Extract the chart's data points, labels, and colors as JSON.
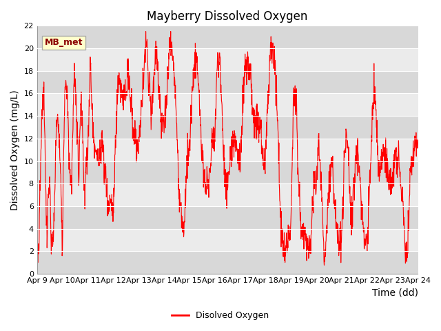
{
  "title": "Mayberry Dissolved Oxygen",
  "ylabel": "Dissolved Oxygen (mg/L)",
  "xlabel": "Time (dd)",
  "ylim": [
    0,
    22
  ],
  "yticks": [
    0,
    2,
    4,
    6,
    8,
    10,
    12,
    14,
    16,
    18,
    20,
    22
  ],
  "line_color": "#FF0000",
  "line_width": 0.8,
  "bg_color": "#DCDCDC",
  "band_color_1": "#DCDCDC",
  "band_color_2": "#F0F0F0",
  "legend_label": "Disolved Oxygen",
  "mb_label": "MB_met",
  "mb_box_color": "#FFFFCC",
  "mb_box_edge": "#CCCC00",
  "x_tick_labels": [
    "Apr 9",
    "Apr 10",
    "Apr 11",
    "Apr 12",
    "Apr 13",
    "Apr 14",
    "Apr 15",
    "Apr 16",
    "Apr 17",
    "Apr 18",
    "Apr 19",
    "Apr 20",
    "Apr 21",
    "Apr 22",
    "Apr 23",
    "Apr 24"
  ],
  "title_fontsize": 12,
  "axis_label_fontsize": 10,
  "tick_fontsize": 8
}
